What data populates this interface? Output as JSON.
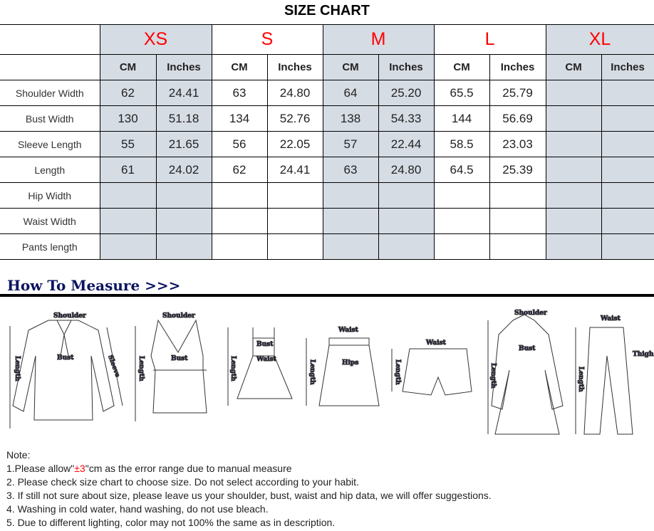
{
  "title": "SIZE CHART",
  "sizes": [
    "XS",
    "S",
    "M",
    "L",
    "XL"
  ],
  "units": {
    "cm": "CM",
    "in": "Inches"
  },
  "rows": [
    {
      "label": "Shoulder Width",
      "values": [
        "62",
        "24.41",
        "63",
        "24.80",
        "64",
        "25.20",
        "65.5",
        "25.79",
        "",
        ""
      ]
    },
    {
      "label": "Bust Width",
      "values": [
        "130",
        "51.18",
        "134",
        "52.76",
        "138",
        "54.33",
        "144",
        "56.69",
        "",
        ""
      ]
    },
    {
      "label": "Sleeve Length",
      "values": [
        "55",
        "21.65",
        "56",
        "22.05",
        "57",
        "22.44",
        "58.5",
        "23.03",
        "",
        ""
      ]
    },
    {
      "label": "Length",
      "values": [
        "61",
        "24.02",
        "62",
        "24.41",
        "63",
        "24.80",
        "64.5",
        "25.39",
        "",
        ""
      ]
    },
    {
      "label": "Hip Width",
      "values": [
        "",
        "",
        "",
        "",
        "",
        "",
        "",
        "",
        "",
        ""
      ]
    },
    {
      "label": "Waist Width",
      "values": [
        "",
        "",
        "",
        "",
        "",
        "",
        "",
        "",
        "",
        ""
      ]
    },
    {
      "label": "Pants length",
      "values": [
        "",
        "",
        "",
        "",
        "",
        "",
        "",
        "",
        "",
        ""
      ]
    }
  ],
  "colors": {
    "size_label": "#ff0000",
    "shaded": "#d6dce4",
    "measure_text": "#14145a"
  },
  "how_to_measure": "How To Measure >>>",
  "figure_labels": {
    "shoulder": "Shoulder",
    "bust": "Bust",
    "sleeve": "Sleeve",
    "length": "Length",
    "waist": "Waist",
    "hips": "Hips",
    "thigh": "Thigh"
  },
  "notes": {
    "heading": "Note:",
    "n1_pre": "1.Please allow\"",
    "n1_red": "±3",
    "n1_post": "\"cm as the error range due to manual measure",
    "n2": "2. Please check size chart to choose size. Do not select according to your habit.",
    "n3": "3. If still not sure about size, please leave us your shoulder, bust, waist and hip data, we will offer suggestions.",
    "n4": "4. Washing in cold water, hand washing, do not use bleach.",
    "n5": "5. Due to different lighting, color may not 100% the same as in description."
  }
}
